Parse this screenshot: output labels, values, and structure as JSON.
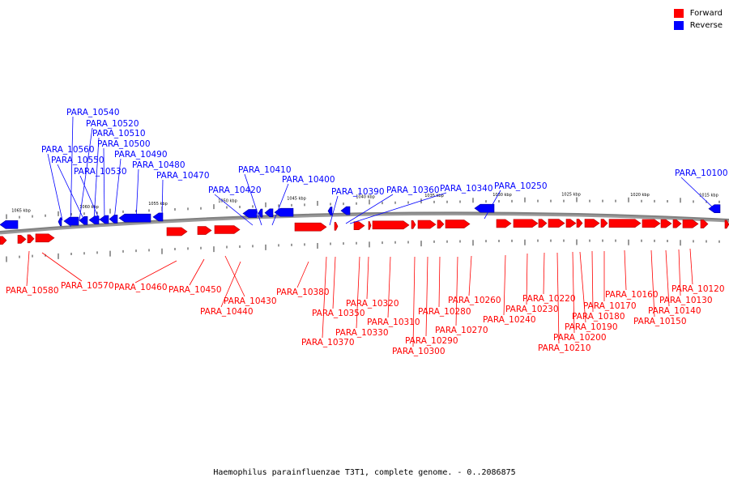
{
  "caption": "Haemophilus parainfluenzae T3T1, complete genome. - 0..2086875",
  "legend": [
    {
      "label": "Forward",
      "color": "#ff0000"
    },
    {
      "label": "Reverse",
      "color": "#0000ff"
    }
  ],
  "colors": {
    "forward": "#ff0000",
    "reverse": "#0000ff",
    "backbone": "#808080"
  },
  "kbp_labels": [
    "1065 kbp",
    "1060 kbp",
    "1055 kbp",
    "1050 kbp",
    "1045 kbp",
    "1040 kbp",
    "1035 kbp",
    "1030 kbp",
    "1025 kbp",
    "1020 kbp",
    "1015 kbp"
  ],
  "reverse_genes": [
    "PARA_10540",
    "PARA_10520",
    "PARA_10510",
    "PARA_10500",
    "PARA_10560",
    "PARA_10490",
    "PARA_10550",
    "PARA_10480",
    "PARA_10530",
    "PARA_10470",
    "PARA_10410",
    "PARA_10400",
    "PARA_10420",
    "PARA_10390",
    "PARA_10360",
    "PARA_10340",
    "PARA_10250",
    "PARA_10100"
  ],
  "forward_genes": [
    "PARA_10580",
    "PARA_10570",
    "PARA_10460",
    "PARA_10450",
    "PARA_10430",
    "PARA_10440",
    "PARA_10380",
    "PARA_10350",
    "PARA_10370",
    "PARA_10320",
    "PARA_10330",
    "PARA_10310",
    "PARA_10280",
    "PARA_10290",
    "PARA_10300",
    "PARA_10270",
    "PARA_10260",
    "PARA_10240",
    "PARA_10230",
    "PARA_10220",
    "PARA_10210",
    "PARA_10200",
    "PARA_10190",
    "PARA_10180",
    "PARA_10170",
    "PARA_10160",
    "PARA_10150",
    "PARA_10140",
    "PARA_10130",
    "PARA_10120"
  ]
}
